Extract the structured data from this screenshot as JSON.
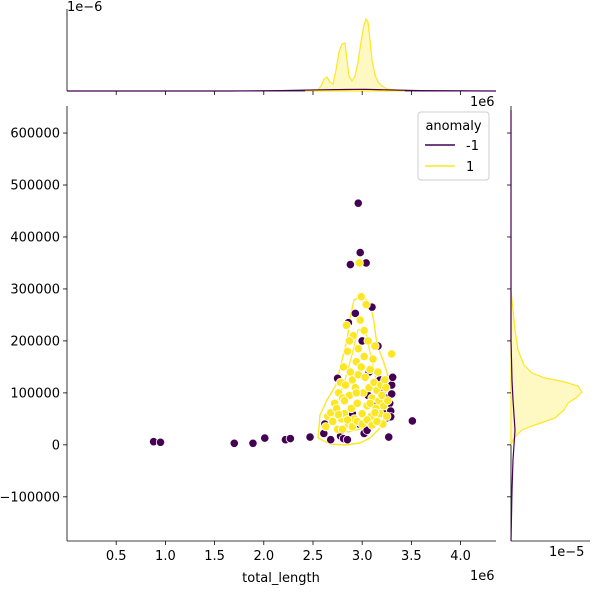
{
  "chart_data": {
    "type": "scatter",
    "xlabel": "total_length",
    "ylabel": "",
    "x_offset_label": "1e6",
    "y_offset_label": "1e6",
    "top_marginal_offset_label": "1e−6",
    "right_marginal_offset_label": "1e−5",
    "xlim": [
      0,
      4360000
    ],
    "ylim": [
      -185000,
      652000
    ],
    "x_ticks": [
      500000,
      1000000,
      1500000,
      2000000,
      2500000,
      3000000,
      3500000,
      4000000
    ],
    "x_tick_labels": [
      "0.5",
      "1.0",
      "1.5",
      "2.0",
      "2.5",
      "3.0",
      "3.5",
      "4.0"
    ],
    "y_ticks": [
      -100000,
      0,
      100000,
      200000,
      300000,
      400000,
      500000,
      600000
    ],
    "y_tick_labels": [
      "−100000",
      "0",
      "100000",
      "200000",
      "300000",
      "400000",
      "500000",
      "600000"
    ],
    "legend": {
      "title": "anomaly",
      "placement": "top-right",
      "entries": [
        {
          "label": "-1",
          "color": "#440154"
        },
        {
          "label": "1",
          "color": "#fde725"
        }
      ]
    },
    "colors": {
      "anomaly": "#440154",
      "normal": "#fde725",
      "normal_edge": "#ffffff"
    },
    "series": [
      {
        "name": "-1",
        "points": [
          [
            880000,
            6000
          ],
          [
            950000,
            5000
          ],
          [
            1700000,
            3000
          ],
          [
            1890000,
            3000
          ],
          [
            2010000,
            13000
          ],
          [
            2220000,
            10000
          ],
          [
            2270000,
            12000
          ],
          [
            2470000,
            15000
          ],
          [
            2610000,
            22000
          ],
          [
            2620000,
            40000
          ],
          [
            2680000,
            10000
          ],
          [
            2750000,
            128000
          ],
          [
            2780000,
            17000
          ],
          [
            2810000,
            12000
          ],
          [
            2850000,
            10000
          ],
          [
            2860000,
            235000
          ],
          [
            2880000,
            347000
          ],
          [
            2930000,
            253000
          ],
          [
            2960000,
            465000
          ],
          [
            2970000,
            40000
          ],
          [
            2980000,
            370000
          ],
          [
            3020000,
            22000
          ],
          [
            3040000,
            350000
          ],
          [
            3050000,
            28000
          ],
          [
            3060000,
            95000
          ],
          [
            3070000,
            140000
          ],
          [
            3100000,
            265000
          ],
          [
            3110000,
            45000
          ],
          [
            3130000,
            80000
          ],
          [
            3160000,
            190000
          ],
          [
            3180000,
            125000
          ],
          [
            3200000,
            100000
          ],
          [
            3220000,
            60000
          ],
          [
            3240000,
            90000
          ],
          [
            3250000,
            52000
          ],
          [
            3270000,
            15000
          ],
          [
            3280000,
            80000
          ],
          [
            3290000,
            65000
          ],
          [
            3300000,
            115000
          ],
          [
            3310000,
            130000
          ],
          [
            3300000,
            98000
          ],
          [
            3290000,
            54000
          ],
          [
            3510000,
            46000
          ],
          [
            2900000,
            60000
          ],
          [
            3000000,
            200000
          ]
        ]
      },
      {
        "name": "1",
        "points": [
          [
            2630000,
            35000
          ],
          [
            2650000,
            55000
          ],
          [
            2680000,
            62000
          ],
          [
            2700000,
            45000
          ],
          [
            2720000,
            80000
          ],
          [
            2740000,
            70000
          ],
          [
            2750000,
            30000
          ],
          [
            2760000,
            100000
          ],
          [
            2780000,
            120000
          ],
          [
            2790000,
            50000
          ],
          [
            2800000,
            90000
          ],
          [
            2810000,
            150000
          ],
          [
            2820000,
            60000
          ],
          [
            2830000,
            115000
          ],
          [
            2840000,
            230000
          ],
          [
            2850000,
            180000
          ],
          [
            2860000,
            40000
          ],
          [
            2870000,
            95000
          ],
          [
            2880000,
            140000
          ],
          [
            2890000,
            70000
          ],
          [
            2900000,
            125000
          ],
          [
            2910000,
            210000
          ],
          [
            2920000,
            50000
          ],
          [
            2930000,
            110000
          ],
          [
            2940000,
            160000
          ],
          [
            2950000,
            80000
          ],
          [
            2960000,
            135000
          ],
          [
            2970000,
            350000
          ],
          [
            2980000,
            240000
          ],
          [
            2990000,
            285000
          ],
          [
            3000000,
            60000
          ],
          [
            3010000,
            100000
          ],
          [
            3020000,
            170000
          ],
          [
            3030000,
            130000
          ],
          [
            3040000,
            270000
          ],
          [
            3050000,
            75000
          ],
          [
            3060000,
            200000
          ],
          [
            3070000,
            110000
          ],
          [
            3080000,
            145000
          ],
          [
            3090000,
            55000
          ],
          [
            3100000,
            90000
          ],
          [
            3110000,
            165000
          ],
          [
            3120000,
            120000
          ],
          [
            3130000,
            190000
          ],
          [
            3140000,
            70000
          ],
          [
            3150000,
            105000
          ],
          [
            3160000,
            140000
          ],
          [
            3170000,
            85000
          ],
          [
            3180000,
            60000
          ],
          [
            3190000,
            115000
          ],
          [
            3200000,
            95000
          ],
          [
            3210000,
            40000
          ],
          [
            3220000,
            75000
          ],
          [
            3230000,
            125000
          ],
          [
            3240000,
            110000
          ],
          [
            3250000,
            55000
          ],
          [
            3260000,
            85000
          ],
          [
            3300000,
            175000
          ],
          [
            2760000,
            58000
          ],
          [
            2800000,
            30000
          ],
          [
            2850000,
            48000
          ],
          [
            2900000,
            35000
          ],
          [
            2950000,
            45000
          ],
          [
            3000000,
            40000
          ],
          [
            3050000,
            48000
          ],
          [
            3100000,
            38000
          ],
          [
            3150000,
            45000
          ],
          [
            2870000,
            200000
          ],
          [
            2960000,
            185000
          ],
          [
            3020000,
            220000
          ],
          [
            2940000,
            100000
          ],
          [
            3080000,
            80000
          ],
          [
            2820000,
            85000
          ],
          [
            3130000,
            62000
          ],
          [
            2990000,
            150000
          ]
        ]
      }
    ]
  }
}
